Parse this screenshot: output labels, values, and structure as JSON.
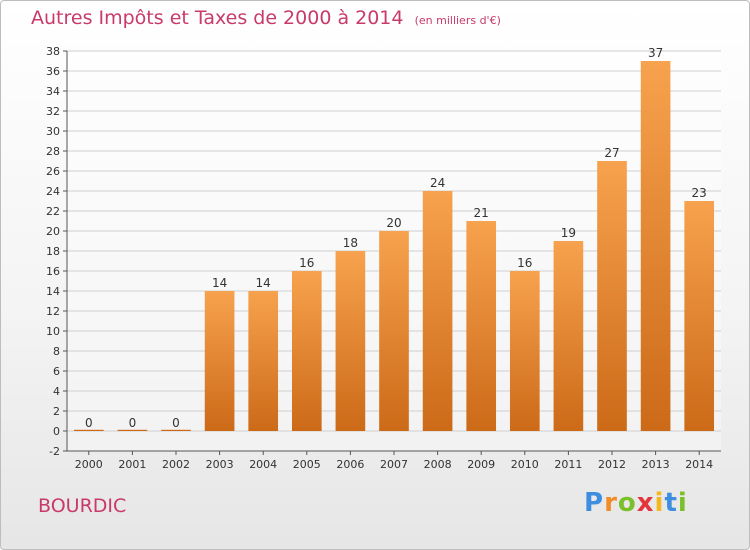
{
  "header": {
    "title": "Autres Impôts et Taxes de 2000 à 2014",
    "unit": "(en milliers d'€)"
  },
  "footer": {
    "commune": "BOURDIC",
    "logo_letters": [
      "P",
      "r",
      "o",
      "x",
      "i",
      "t",
      "i"
    ],
    "logo_colors": [
      "#3d8ee0",
      "#f28c28",
      "#7bbf2a",
      "#e2363a",
      "#f2b81c",
      "#3d8ee0",
      "#7bbf2a"
    ]
  },
  "chart_data": {
    "type": "bar",
    "title": "Autres Impôts et Taxes de 2000 à 2014",
    "categories": [
      "2000",
      "2001",
      "2002",
      "2003",
      "2004",
      "2005",
      "2006",
      "2007",
      "2008",
      "2009",
      "2010",
      "2011",
      "2012",
      "2013",
      "2014"
    ],
    "values": [
      0,
      0,
      0,
      14,
      14,
      16,
      18,
      20,
      24,
      21,
      16,
      19,
      27,
      37,
      23
    ],
    "ylim": [
      -2,
      38
    ],
    "yticks": [
      -2,
      0,
      2,
      4,
      6,
      8,
      10,
      12,
      14,
      16,
      18,
      20,
      22,
      24,
      26,
      28,
      30,
      32,
      34,
      36,
      38
    ],
    "grid": true,
    "bar_color_top": "#f7a24e",
    "bar_color_bottom": "#cc6a18",
    "label_color": "#333333"
  }
}
